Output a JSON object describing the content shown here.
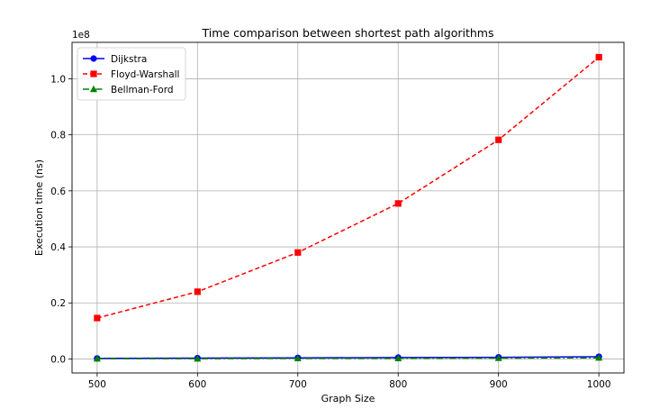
{
  "chart_data": {
    "type": "line",
    "title": "Time comparison between shortest path algorithms",
    "xlabel": "Graph Size",
    "ylabel": "Execution time (ns)",
    "y_offset_label": "1e8",
    "x": [
      500,
      600,
      700,
      800,
      900,
      1000
    ],
    "xlim": [
      475,
      1025
    ],
    "ylim": [
      -0.05,
      1.13
    ],
    "x_ticks": [
      500,
      600,
      700,
      800,
      900,
      1000
    ],
    "y_ticks": [
      0.0,
      0.2,
      0.4,
      0.6,
      0.8,
      1.0
    ],
    "y_tick_labels": [
      "0.0",
      "0.2",
      "0.4",
      "0.6",
      "0.8",
      "1.0"
    ],
    "grid": true,
    "legend_position": "top-left",
    "series": [
      {
        "name": "Dijkstra",
        "values": [
          0.002,
          0.003,
          0.004,
          0.005,
          0.006,
          0.008
        ],
        "color": "#0000ff",
        "marker": "circle",
        "linestyle": "solid"
      },
      {
        "name": "Floyd-Warshall",
        "values": [
          0.146,
          0.24,
          0.38,
          0.555,
          0.782,
          1.077
        ],
        "color": "#ff0000",
        "marker": "square",
        "linestyle": "dashed"
      },
      {
        "name": "Bellman-Ford",
        "values": [
          0.001,
          0.001,
          0.002,
          0.002,
          0.003,
          0.004
        ],
        "color": "#008000",
        "marker": "triangle",
        "linestyle": "dashdot"
      }
    ]
  }
}
